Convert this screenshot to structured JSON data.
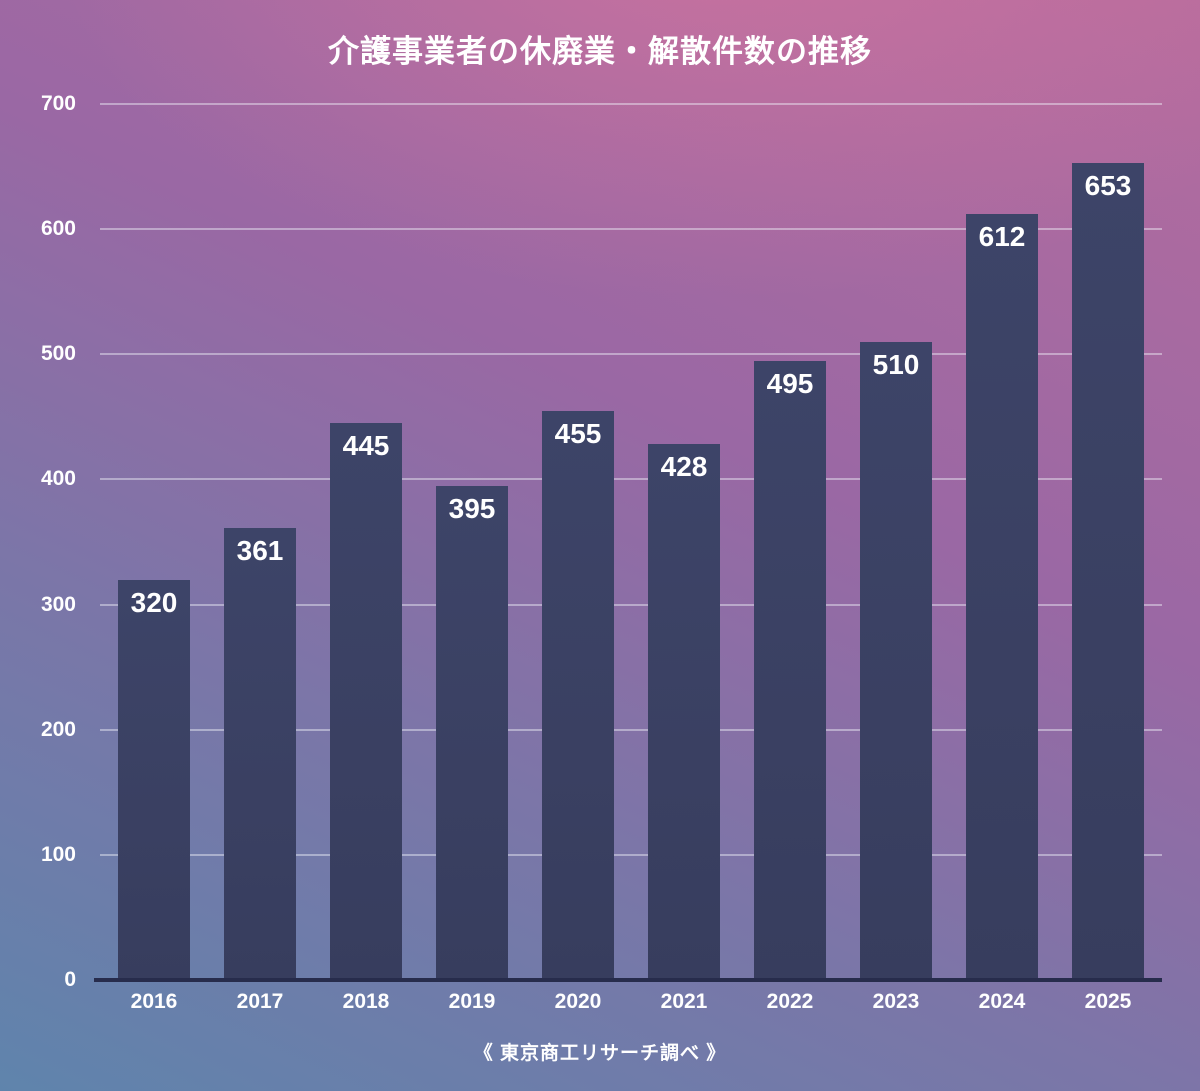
{
  "chart_data": {
    "type": "bar",
    "title": "介護事業者の休廃業・解散件数の推移",
    "source": "《 東京商工リサーチ調べ 》",
    "categories": [
      "2016",
      "2017",
      "2018",
      "2019",
      "2020",
      "2021",
      "2022",
      "2023",
      "2024",
      "2025"
    ],
    "values": [
      320,
      361,
      445,
      395,
      455,
      428,
      495,
      510,
      612,
      653
    ],
    "xlabel": "",
    "ylabel": "",
    "ylim": [
      0,
      700
    ],
    "yticks": [
      0,
      100,
      200,
      300,
      400,
      500,
      600,
      700
    ],
    "grid": true,
    "legend": false,
    "bar_color": "#3a4062",
    "text_color": "#ffffff"
  }
}
